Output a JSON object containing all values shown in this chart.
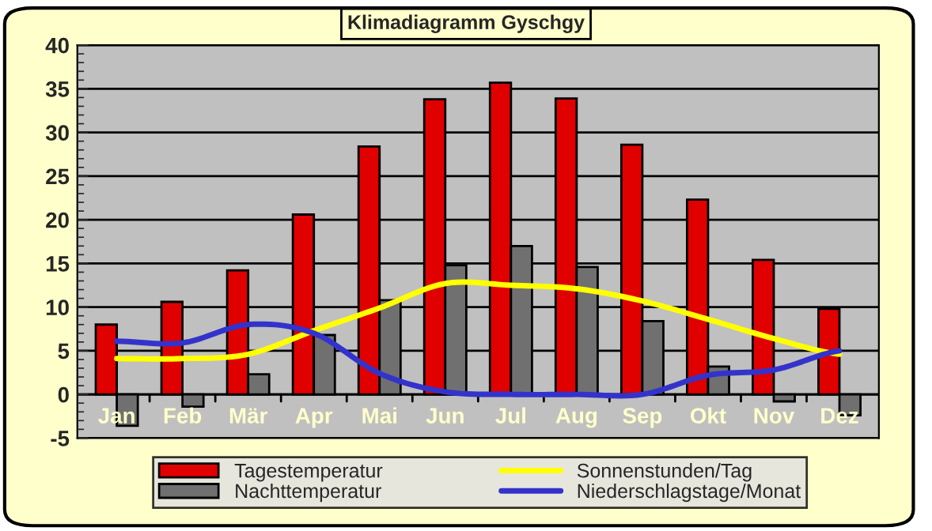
{
  "chart_data": {
    "type": "bar",
    "title": "Klimadiagramm Gyschgy",
    "categories": [
      "Jan",
      "Feb",
      "Mär",
      "Apr",
      "Mai",
      "Jun",
      "Jul",
      "Aug",
      "Sep",
      "Okt",
      "Nov",
      "Dez"
    ],
    "series": [
      {
        "name": "Tagestemperatur",
        "color": "#e00000",
        "values": [
          8.0,
          10.6,
          14.2,
          20.6,
          28.4,
          33.8,
          35.7,
          33.9,
          28.6,
          22.3,
          15.4,
          9.8
        ]
      },
      {
        "name": "Nachttemperatur",
        "color": "#707070",
        "values": [
          -3.6,
          -1.4,
          2.3,
          6.8,
          10.8,
          14.8,
          17.0,
          14.6,
          8.4,
          3.2,
          -0.8,
          -2.4
        ]
      },
      {
        "name": "Sonnenstunden/Tag",
        "type": "line",
        "color": "#ffff00",
        "values": [
          4.1,
          4.1,
          4.6,
          7.3,
          9.9,
          12.7,
          12.5,
          12.1,
          10.7,
          8.6,
          6.4,
          4.6
        ]
      },
      {
        "name": "Niederschlagstage/Monat",
        "type": "line",
        "color": "#3333cc",
        "values": [
          6.1,
          5.9,
          8.0,
          7.0,
          2.4,
          0.3,
          0.0,
          0.0,
          0.0,
          2.2,
          2.8,
          5.0
        ]
      }
    ],
    "ylim": [
      -5,
      40
    ],
    "yticks": [
      -5,
      0,
      5,
      10,
      15,
      20,
      25,
      30,
      35,
      40
    ],
    "grid": "y",
    "legend": "bottom",
    "marker": "none",
    "line_style": "solid"
  }
}
